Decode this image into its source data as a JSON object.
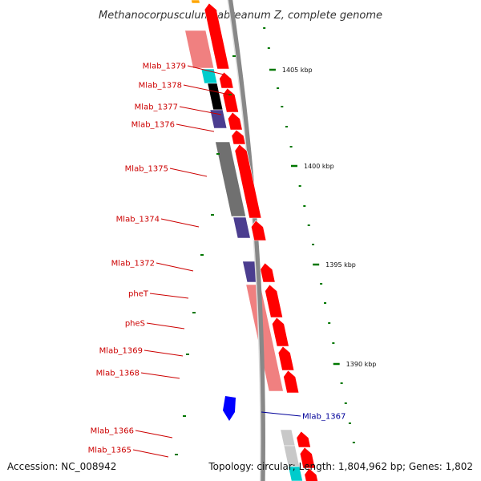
{
  "title": "Methanocorpusculum labreanum Z, complete genome",
  "accession": "Accession: NC_008942",
  "summary": "Topology: circular; Length: 1,804,962 bp; Genes: 1,802",
  "colors": {
    "cds_arrow": "#ff0000",
    "blue_arrow": "#0000ff",
    "label_red": "#cc0000",
    "label_blue": "#000099",
    "tick": "#007700",
    "backbone": "#888888",
    "pink": "#f08080",
    "navy": "#4b3d8f",
    "gray": "#707070",
    "cyan": "#00cccc",
    "lightgray": "#c8c8c8",
    "orange": "#ffa500"
  },
  "scale_labels": [
    {
      "text": "1405 kbp",
      "kbp": 1405
    },
    {
      "text": "1400 kbp",
      "kbp": 1400
    },
    {
      "text": "1395 kbp",
      "kbp": 1395
    },
    {
      "text": "1390 kbp",
      "kbp": 1390
    }
  ],
  "genes": [
    {
      "label": "Mlab_1379",
      "color": "label_red"
    },
    {
      "label": "Mlab_1378",
      "color": "label_red"
    },
    {
      "label": "Mlab_1377",
      "color": "label_red"
    },
    {
      "label": "Mlab_1376",
      "color": "label_red"
    },
    {
      "label": "Mlab_1375",
      "color": "label_red"
    },
    {
      "label": "Mlab_1374",
      "color": "label_red"
    },
    {
      "label": "Mlab_1372",
      "color": "label_red"
    },
    {
      "label": "pheT",
      "color": "label_red"
    },
    {
      "label": "pheS",
      "color": "label_red"
    },
    {
      "label": "Mlab_1369",
      "color": "label_red"
    },
    {
      "label": "Mlab_1368",
      "color": "label_red"
    },
    {
      "label": "Mlab_1367",
      "color": "label_blue"
    },
    {
      "label": "Mlab_1366",
      "color": "label_red"
    },
    {
      "label": "Mlab_1365",
      "color": "label_red"
    }
  ]
}
